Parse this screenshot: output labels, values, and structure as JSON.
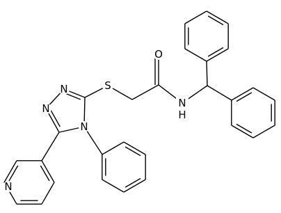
{
  "atom_labels": {
    "oxygen": "O",
    "amide_n": "N",
    "amide_h": "H",
    "sulfur": "S",
    "triazole_n1": "N",
    "triazole_n2": "N",
    "triazole_n4": "N",
    "pyridine_n": "N"
  }
}
